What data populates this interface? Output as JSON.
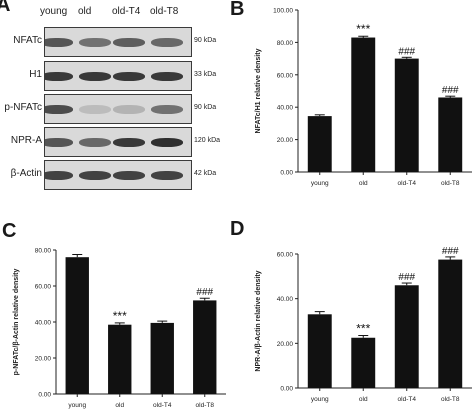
{
  "panel_a": {
    "lanes": [
      "young",
      "old",
      "old-T4",
      "old-T8"
    ],
    "rows": [
      {
        "protein": "NFATc",
        "kda": "90 kDa",
        "intensities": [
          0.7,
          0.55,
          0.65,
          0.6
        ]
      },
      {
        "protein": "H1",
        "kda": "33 kDa",
        "intensities": [
          0.85,
          0.85,
          0.85,
          0.85
        ]
      },
      {
        "protein": "p-NFATc",
        "kda": "90 kDa",
        "intensities": [
          0.75,
          0.15,
          0.2,
          0.55
        ]
      },
      {
        "protein": "NPR-A",
        "kda": "120 kDa",
        "intensities": [
          0.7,
          0.6,
          0.85,
          0.9
        ]
      },
      {
        "protein": "β-Actin",
        "kda": "42 kDa",
        "intensities": [
          0.8,
          0.8,
          0.8,
          0.8
        ]
      }
    ]
  },
  "chart_data": [
    {
      "panel": "B",
      "type": "bar",
      "categories": [
        "young",
        "old",
        "old-T4",
        "old-T8"
      ],
      "values": [
        34.5,
        83.0,
        70.0,
        46.0
      ],
      "errors": [
        0.8,
        0.8,
        0.8,
        0.8
      ],
      "significance": [
        "",
        "***",
        "###",
        "###"
      ],
      "ylabel": "NFATc/H1 relative density",
      "ylim": [
        0,
        100
      ],
      "yticks": [
        "0.00",
        "20.00",
        "40.00",
        "60.00",
        "80.00",
        "100.00"
      ]
    },
    {
      "panel": "C",
      "type": "bar",
      "categories": [
        "young",
        "old",
        "old-T4",
        "old-T8"
      ],
      "values": [
        76.0,
        38.5,
        39.5,
        52.0
      ],
      "errors": [
        1.5,
        1.0,
        1.0,
        1.2
      ],
      "significance": [
        "",
        "***",
        "",
        "###"
      ],
      "ylabel": "p-NFATc/β-Actin relative density",
      "ylim": [
        0,
        80
      ],
      "yticks": [
        "0.00",
        "20.00",
        "40.00",
        "60.00",
        "80.00"
      ]
    },
    {
      "panel": "D",
      "type": "bar",
      "categories": [
        "young",
        "old",
        "old-T4",
        "old-T8"
      ],
      "values": [
        33.0,
        22.5,
        46.0,
        57.5
      ],
      "errors": [
        1.2,
        1.0,
        1.0,
        1.2
      ],
      "significance": [
        "",
        "***",
        "###",
        "###"
      ],
      "ylabel": "NPR-A/β-Actin relative density",
      "ylim": [
        0,
        60
      ],
      "yticks": [
        "0.00",
        "20.00",
        "40.00",
        "60.00"
      ]
    }
  ],
  "colors": {
    "bar": "#111111",
    "axis": "#222222",
    "text": "#222222"
  }
}
